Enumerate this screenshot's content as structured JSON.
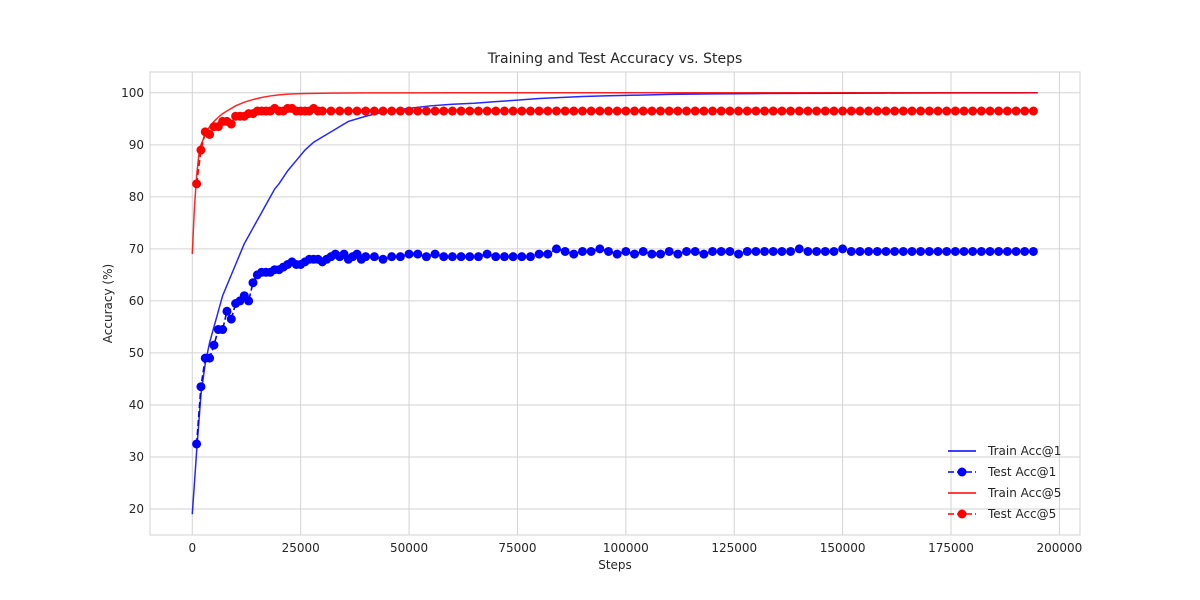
{
  "chart_data": {
    "type": "line",
    "title": "Training and Test Accuracy vs. Steps",
    "xlabel": "Steps",
    "ylabel": "Accuracy (%)",
    "xlim": [
      -9750,
      204750
    ],
    "ylim": [
      15,
      104
    ],
    "xticks": [
      0,
      25000,
      50000,
      75000,
      100000,
      125000,
      150000,
      175000,
      200000
    ],
    "xtick_labels": [
      "0",
      "25000",
      "50000",
      "75000",
      "100000",
      "125000",
      "150000",
      "175000",
      "200000"
    ],
    "yticks": [
      20,
      30,
      40,
      50,
      60,
      70,
      80,
      90,
      100
    ],
    "ytick_labels": [
      "20",
      "30",
      "40",
      "50",
      "60",
      "70",
      "80",
      "90",
      "100"
    ],
    "grid": true,
    "legend_position": "lower-right",
    "series": [
      {
        "name": "Train Acc@1",
        "color": "#0000ff",
        "style": "solid",
        "x": [
          0,
          1000,
          2000,
          3000,
          4000,
          5000,
          6000,
          7000,
          8000,
          9000,
          10000,
          11000,
          12000,
          13000,
          14000,
          15000,
          16000,
          17000,
          18000,
          19000,
          20000,
          22000,
          24000,
          26000,
          28000,
          30000,
          33000,
          36000,
          40000,
          45000,
          50000,
          55000,
          60000,
          65000,
          70000,
          75000,
          80000,
          85000,
          90000,
          95000,
          100000,
          110000,
          120000,
          130000,
          140000,
          150000,
          160000,
          170000,
          180000,
          195000
        ],
        "y": [
          19,
          31,
          42,
          48,
          52,
          55,
          58,
          61,
          63,
          65,
          67,
          69,
          71,
          72.5,
          74,
          75.5,
          77,
          78.5,
          80,
          81.5,
          82.5,
          85,
          87,
          89,
          90.5,
          91.5,
          93,
          94.5,
          95.5,
          96.5,
          97,
          97.5,
          97.8,
          98,
          98.3,
          98.6,
          98.9,
          99.1,
          99.3,
          99.4,
          99.5,
          99.7,
          99.8,
          99.85,
          99.9,
          99.92,
          99.95,
          99.97,
          99.98,
          100
        ]
      },
      {
        "name": "Test Acc@1",
        "color": "#0000ff",
        "style": "dashed",
        "marker": "circle",
        "x": [
          1000,
          2000,
          3000,
          4000,
          5000,
          6000,
          7000,
          8000,
          9000,
          10000,
          11000,
          12000,
          13000,
          14000,
          15000,
          16000,
          17000,
          18000,
          19000,
          20000,
          21000,
          22000,
          23000,
          24000,
          25000,
          26000,
          27000,
          28000,
          29000,
          30000,
          31000,
          32000,
          33000,
          34000,
          35000,
          36000,
          37000,
          38000,
          39000,
          40000,
          42000,
          44000,
          46000,
          48000,
          50000,
          52000,
          54000,
          56000,
          58000,
          60000,
          62000,
          64000,
          66000,
          68000,
          70000,
          72000,
          74000,
          76000,
          78000,
          80000,
          82000,
          84000,
          86000,
          88000,
          90000,
          92000,
          94000,
          96000,
          98000,
          100000,
          102000,
          104000,
          106000,
          108000,
          110000,
          112000,
          114000,
          116000,
          118000,
          120000,
          122000,
          124000,
          126000,
          128000,
          130000,
          132000,
          134000,
          136000,
          138000,
          140000,
          142000,
          144000,
          146000,
          148000,
          150000,
          152000,
          154000,
          156000,
          158000,
          160000,
          162000,
          164000,
          166000,
          168000,
          170000,
          172000,
          174000,
          176000,
          178000,
          180000,
          182000,
          184000,
          186000,
          188000,
          190000,
          192000,
          194000
        ],
        "y": [
          32.5,
          43.5,
          49,
          49,
          51.5,
          54.5,
          54.5,
          58,
          56.5,
          59.5,
          60,
          61,
          60,
          63.5,
          65,
          65.5,
          65.5,
          65.5,
          66,
          66,
          66.5,
          67,
          67.5,
          67,
          67,
          67.5,
          68,
          68,
          68,
          67.5,
          68,
          68.5,
          69,
          68.5,
          69,
          68,
          68.5,
          69,
          68,
          68.5,
          68.5,
          68,
          68.5,
          68.5,
          69,
          69,
          68.5,
          69,
          68.5,
          68.5,
          68.5,
          68.5,
          68.5,
          69,
          68.5,
          68.5,
          68.5,
          68.5,
          68.5,
          69,
          69,
          70,
          69.5,
          69,
          69.5,
          69.5,
          70,
          69.5,
          69,
          69.5,
          69,
          69.5,
          69,
          69,
          69.5,
          69,
          69.5,
          69.5,
          69,
          69.5,
          69.5,
          69.5,
          69,
          69.5,
          69.5,
          69.5,
          69.5,
          69.5,
          69.5,
          70,
          69.5,
          69.5,
          69.5,
          69.5,
          70,
          69.5,
          69.5,
          69.5,
          69.5,
          69.5,
          69.5,
          69.5,
          69.5,
          69.5,
          69.5,
          69.5,
          69.5,
          69.5,
          69.5,
          69.5,
          69.5,
          69.5,
          69.5,
          69.5,
          69.5,
          69.5,
          69.5
        ]
      },
      {
        "name": "Train Acc@5",
        "color": "#ff0000",
        "style": "solid",
        "x": [
          0,
          500,
          1000,
          1500,
          2000,
          3000,
          4000,
          5000,
          6000,
          7000,
          8000,
          9000,
          10000,
          12000,
          14000,
          16000,
          18000,
          20000,
          22000,
          25000,
          28000,
          32000,
          36000,
          40000,
          50000,
          60000,
          80000,
          100000,
          120000,
          140000,
          160000,
          180000,
          195000
        ],
        "y": [
          69,
          78,
          84,
          88,
          90,
          92,
          93.5,
          94.5,
          95.3,
          96,
          96.5,
          97,
          97.5,
          98.2,
          98.7,
          99.1,
          99.4,
          99.6,
          99.75,
          99.85,
          99.9,
          99.95,
          99.97,
          99.98,
          99.99,
          100,
          100,
          100,
          100,
          100,
          100,
          100,
          100
        ]
      },
      {
        "name": "Test Acc@5",
        "color": "#ff0000",
        "style": "dashed",
        "marker": "circle",
        "x": [
          1000,
          2000,
          3000,
          4000,
          5000,
          6000,
          7000,
          8000,
          9000,
          10000,
          11000,
          12000,
          13000,
          14000,
          15000,
          16000,
          17000,
          18000,
          19000,
          20000,
          21000,
          22000,
          23000,
          24000,
          25000,
          26000,
          27000,
          28000,
          29000,
          30000,
          32000,
          34000,
          36000,
          38000,
          40000,
          42000,
          44000,
          46000,
          48000,
          50000,
          52000,
          54000,
          56000,
          58000,
          60000,
          62000,
          64000,
          66000,
          68000,
          70000,
          72000,
          74000,
          76000,
          78000,
          80000,
          82000,
          84000,
          86000,
          88000,
          90000,
          92000,
          94000,
          96000,
          98000,
          100000,
          102000,
          104000,
          106000,
          108000,
          110000,
          112000,
          114000,
          116000,
          118000,
          120000,
          122000,
          124000,
          126000,
          128000,
          130000,
          132000,
          134000,
          136000,
          138000,
          140000,
          142000,
          144000,
          146000,
          148000,
          150000,
          152000,
          154000,
          156000,
          158000,
          160000,
          162000,
          164000,
          166000,
          168000,
          170000,
          172000,
          174000,
          176000,
          178000,
          180000,
          182000,
          184000,
          186000,
          188000,
          190000,
          192000,
          194000
        ],
        "y": [
          82.5,
          89,
          92.5,
          92,
          93.5,
          93.5,
          94.5,
          94.5,
          94,
          95.5,
          95.5,
          95.5,
          96,
          96,
          96.5,
          96.5,
          96.5,
          96.5,
          97,
          96.5,
          96.5,
          97,
          97,
          96.5,
          96.5,
          96.5,
          96.5,
          97,
          96.5,
          96.5,
          96.5,
          96.5,
          96.5,
          96.5,
          96.5,
          96.5,
          96.5,
          96.5,
          96.5,
          96.5,
          96.5,
          96.5,
          96.5,
          96.5,
          96.5,
          96.5,
          96.5,
          96.5,
          96.5,
          96.5,
          96.5,
          96.5,
          96.5,
          96.5,
          96.5,
          96.5,
          96.5,
          96.5,
          96.5,
          96.5,
          96.5,
          96.5,
          96.5,
          96.5,
          96.5,
          96.5,
          96.5,
          96.5,
          96.5,
          96.5,
          96.5,
          96.5,
          96.5,
          96.5,
          96.5,
          96.5,
          96.5,
          96.5,
          96.5,
          96.5,
          96.5,
          96.5,
          96.5,
          96.5,
          96.5,
          96.5,
          96.5,
          96.5,
          96.5,
          96.5,
          96.5,
          96.5,
          96.5,
          96.5,
          96.5,
          96.5,
          96.5,
          96.5,
          96.5,
          96.5,
          96.5,
          96.5,
          96.5,
          96.5,
          96.5,
          96.5,
          96.5,
          96.5,
          96.5,
          96.5,
          96.5,
          96.5
        ]
      }
    ]
  }
}
